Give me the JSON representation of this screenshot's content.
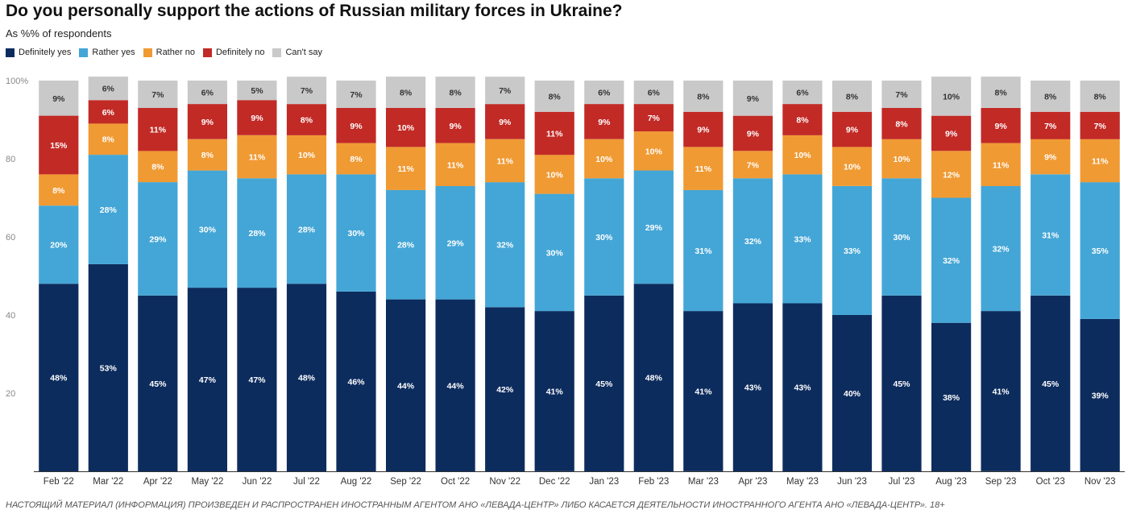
{
  "title": "Do you personally support the actions of Russian military forces in Ukraine?",
  "subtitle": "As %% of respondents",
  "footer": "НАСТОЯЩИЙ МАТЕРИАЛ (ИНФОРМАЦИЯ) ПРОИЗВЕДЕН И РАСПРОСТРАНЕН ИНОСТРАННЫМ АГЕНТОМ АНО «ЛЕВАДА-ЦЕНТР» ЛИБО КАСАЕТСЯ ДЕЯТЕЛЬНОСТИ ИНОСТРАННОГО АГЕНТА АНО «ЛЕВАДА-ЦЕНТР». 18+",
  "colors": {
    "Definitely yes": "#0d2c5e",
    "Rather yes": "#44a6d6",
    "Rather no": "#f09a33",
    "Definitely no": "#c22a26",
    "Can't say": "#c9c9c9"
  },
  "chart_data": {
    "type": "bar",
    "stacked": true,
    "title": "Do you personally support the actions of Russian military forces in Ukraine?",
    "subtitle": "As %% of respondents",
    "ylim": [
      0,
      100
    ],
    "yticks": [
      "20",
      "40",
      "60",
      "80",
      "100%"
    ],
    "legend_position": "top-left",
    "grid": false,
    "categories": [
      "Feb '22",
      "Mar '22",
      "Apr '22",
      "May '22",
      "Jun '22",
      "Jul '22",
      "Aug '22",
      "Sep '22",
      "Oct '22",
      "Nov '22",
      "Dec '22",
      "Jan '23",
      "Feb '23",
      "Mar '23",
      "Apr '23",
      "May '23",
      "Jun '23",
      "Jul '23",
      "Aug '23",
      "Sep '23",
      "Oct '23",
      "Nov '23"
    ],
    "series": [
      {
        "name": "Definitely yes",
        "values": [
          48,
          53,
          45,
          47,
          47,
          48,
          46,
          44,
          44,
          42,
          41,
          45,
          48,
          41,
          43,
          43,
          40,
          45,
          38,
          41,
          45,
          39
        ]
      },
      {
        "name": "Rather yes",
        "values": [
          20,
          28,
          29,
          30,
          28,
          28,
          30,
          28,
          29,
          32,
          30,
          30,
          29,
          31,
          32,
          33,
          33,
          30,
          32,
          32,
          31,
          35
        ]
      },
      {
        "name": "Rather no",
        "values": [
          8,
          8,
          8,
          8,
          11,
          10,
          8,
          11,
          11,
          11,
          10,
          10,
          10,
          11,
          7,
          10,
          10,
          10,
          12,
          11,
          9,
          11
        ]
      },
      {
        "name": "Definitely no",
        "values": [
          15,
          6,
          11,
          9,
          9,
          8,
          9,
          10,
          9,
          9,
          11,
          9,
          7,
          9,
          9,
          8,
          9,
          8,
          9,
          9,
          7,
          7
        ]
      },
      {
        "name": "Can't say",
        "values": [
          9,
          6,
          7,
          6,
          5,
          7,
          7,
          8,
          8,
          7,
          8,
          6,
          6,
          8,
          9,
          6,
          8,
          7,
          10,
          8,
          8,
          8
        ]
      }
    ]
  }
}
